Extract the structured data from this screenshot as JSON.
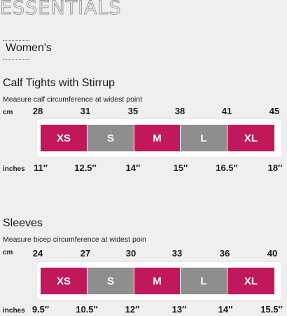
{
  "brand": "ESSENTIALS",
  "section": "Women's",
  "colors": {
    "pink": "#c0185a",
    "gray": "#8e8e8e"
  },
  "calf": {
    "title": "Calf Tights with Stirrup",
    "subtitle": "Measure calf circumference at widest point",
    "cm_label": "cm",
    "cm": [
      "28",
      "31",
      "35",
      "38",
      "41",
      "45"
    ],
    "inches_label": "inches",
    "inches": [
      "11″",
      "12.5″",
      "14″",
      "15″",
      "16.5″",
      "18″"
    ],
    "sizes": [
      "XS",
      "S",
      "M",
      "L",
      "XL"
    ]
  },
  "sleeves": {
    "title": "Sleeves",
    "subtitle": "Measure bicep circumference at widest poin",
    "cm_label": "cm",
    "cm": [
      "24",
      "27",
      "30",
      "33",
      "36",
      "40"
    ],
    "inches_label": "inches",
    "inches": [
      "9.5″",
      "10.5″",
      "12″",
      "13″",
      "14″",
      "15.5″"
    ],
    "sizes": [
      "XS",
      "S",
      "M",
      "L",
      "XL"
    ]
  }
}
